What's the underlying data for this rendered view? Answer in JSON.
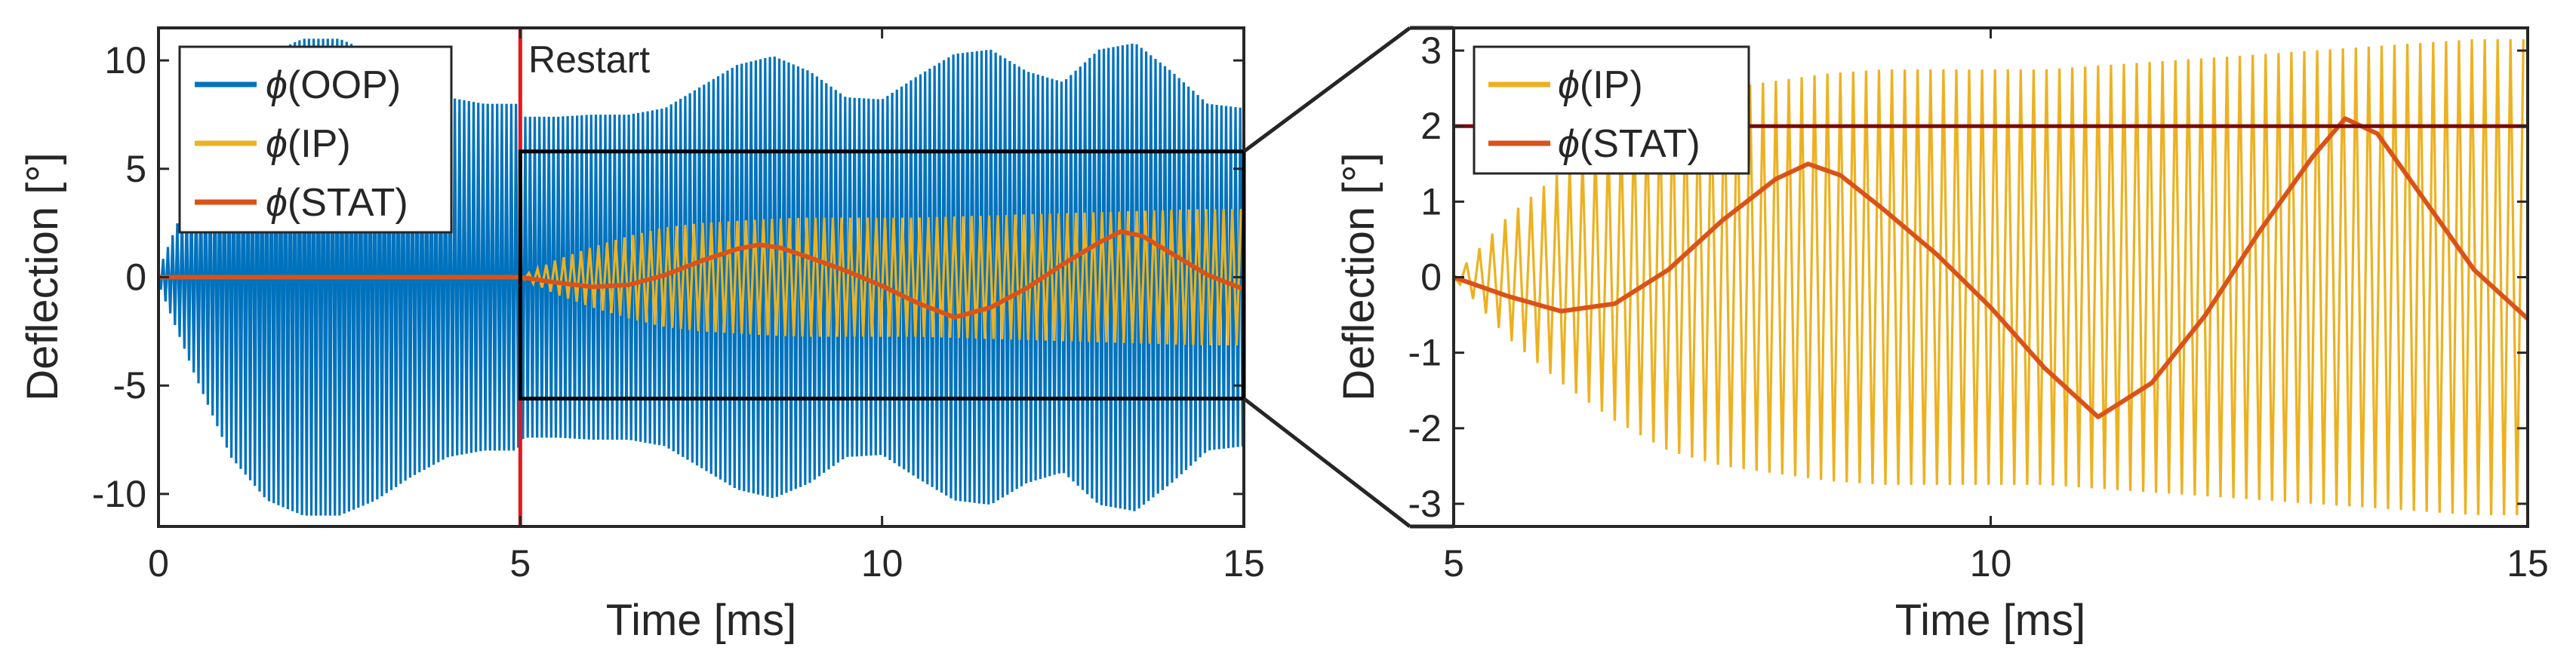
{
  "colors": {
    "oop": "#0072BD",
    "ip": "#EDB120",
    "stat": "#D95319",
    "restart": "#E8141B",
    "stat_ref": "#7A0A0A",
    "axis": "#262626"
  },
  "chart_data": [
    {
      "type": "line",
      "title": "",
      "xlabel": "Time [ms]",
      "ylabel": "Deflection [°]",
      "xlim": [
        0,
        15
      ],
      "ylim": [
        -11.5,
        11.5
      ],
      "xticks": [
        0,
        5,
        10,
        15
      ],
      "xtick_labels": [
        "0",
        "5",
        "10",
        "15"
      ],
      "yticks": [
        10,
        5,
        0,
        -5,
        -10
      ],
      "ytick_labels": [
        "10",
        "5",
        "0",
        "-5",
        "-10"
      ],
      "legend": {
        "placement": "top-left",
        "entries": [
          "ϕ(OOP)",
          "ϕ(IP)",
          "ϕ(STAT)"
        ],
        "symbol": "ϕ",
        "suffixes": [
          "(OOP)",
          "(IP)",
          "(STAT)"
        ]
      },
      "annotation": {
        "text": "Restart",
        "x": 5
      },
      "zoom_box": {
        "x": [
          5,
          15
        ],
        "y": [
          -5.6,
          5.8
        ]
      },
      "series": [
        {
          "name": "ϕ(OOP)",
          "style": "oscillation-envelope",
          "envelope": {
            "t": [
              0,
              0.5,
              1,
              1.5,
              2,
              2.5,
              3,
              3.5,
              4,
              4.5,
              4.95,
              5.05,
              5.5,
              6,
              6.5,
              7,
              7.5,
              8,
              8.5,
              9,
              9.5,
              10,
              10.5,
              11,
              11.5,
              12,
              12.5,
              13,
              13.5,
              14,
              14.5,
              15
            ],
            "amplitude": [
              0.3,
              4.5,
              8.3,
              10.3,
              11.0,
              11.0,
              10.3,
              9.2,
              8.3,
              8.0,
              8.0,
              7.4,
              7.4,
              7.5,
              7.5,
              7.8,
              8.8,
              9.8,
              10.2,
              9.5,
              8.3,
              8.2,
              9.3,
              10.3,
              10.5,
              9.5,
              9.0,
              10.5,
              10.8,
              9.5,
              8.0,
              7.8
            ]
          },
          "period_ms": 0.065
        },
        {
          "name": "ϕ(IP)",
          "style": "oscillation-envelope",
          "envelope": {
            "t": [
              5,
              5.5,
              6,
              6.5,
              7,
              7.5,
              8,
              8.5,
              9,
              9.5,
              10,
              10.5,
              11,
              11.5,
              12,
              12.5,
              13,
              13.5,
              14,
              14.5,
              15
            ],
            "amplitude": [
              0.0,
              0.8,
              1.4,
              1.9,
              2.3,
              2.5,
              2.6,
              2.7,
              2.75,
              2.75,
              2.75,
              2.75,
              2.8,
              2.85,
              2.9,
              2.95,
              3.0,
              3.05,
              3.1,
              3.15,
              3.15
            ]
          },
          "period_ms": 0.12
        },
        {
          "name": "ϕ(STAT)",
          "style": "line",
          "x": [
            0,
            5,
            5.5,
            6,
            6.5,
            7,
            7.5,
            8,
            8.3,
            8.6,
            9,
            9.5,
            10,
            10.5,
            11,
            11.5,
            12,
            12.5,
            13,
            13.3,
            13.6,
            14,
            14.5,
            15
          ],
          "y": [
            0,
            0,
            -0.25,
            -0.45,
            -0.35,
            0.1,
            0.75,
            1.3,
            1.5,
            1.35,
            0.9,
            0.3,
            -0.4,
            -1.2,
            -1.85,
            -1.4,
            -0.5,
            0.6,
            1.6,
            2.1,
            1.9,
            1.1,
            0.1,
            -0.55
          ]
        }
      ]
    },
    {
      "type": "line",
      "title": "",
      "xlabel": "Time [ms]",
      "ylabel": "Deflection [°]",
      "xlim": [
        5,
        15
      ],
      "ylim": [
        -3.3,
        3.3
      ],
      "xticks": [
        5,
        10,
        15
      ],
      "xtick_labels": [
        "5",
        "10",
        "15"
      ],
      "yticks": [
        3,
        2,
        1,
        0,
        -1,
        -2,
        -3
      ],
      "ytick_labels": [
        "3",
        "2",
        "1",
        "0",
        "-1",
        "-2",
        "-3"
      ],
      "legend": {
        "placement": "top-left",
        "entries": [
          "ϕ(IP)",
          "ϕ(STAT)"
        ],
        "symbol": "ϕ",
        "suffixes": [
          "(IP)",
          "(STAT)"
        ]
      },
      "reference_line": {
        "y": 2
      },
      "series": [
        {
          "name": "ϕ(IP)",
          "style": "oscillation-envelope",
          "envelope": {
            "t": [
              5,
              5.5,
              6,
              6.5,
              7,
              7.5,
              8,
              8.5,
              9,
              9.5,
              10,
              10.5,
              11,
              11.5,
              12,
              12.5,
              13,
              13.5,
              14,
              14.5,
              15
            ],
            "amplitude": [
              0.0,
              0.8,
              1.4,
              1.9,
              2.3,
              2.5,
              2.6,
              2.7,
              2.75,
              2.75,
              2.75,
              2.75,
              2.8,
              2.85,
              2.9,
              2.95,
              3.0,
              3.05,
              3.1,
              3.15,
              3.15
            ]
          },
          "period_ms": 0.12
        },
        {
          "name": "ϕ(STAT)",
          "style": "line",
          "x": [
            5,
            5.5,
            6,
            6.5,
            7,
            7.5,
            8,
            8.3,
            8.6,
            9,
            9.5,
            10,
            10.5,
            11,
            11.5,
            12,
            12.5,
            13,
            13.3,
            13.6,
            14,
            14.5,
            15
          ],
          "y": [
            0,
            -0.25,
            -0.45,
            -0.35,
            0.1,
            0.75,
            1.3,
            1.5,
            1.35,
            0.9,
            0.3,
            -0.4,
            -1.2,
            -1.85,
            -1.4,
            -0.5,
            0.6,
            1.6,
            2.1,
            1.9,
            1.1,
            0.1,
            -0.55
          ]
        }
      ]
    }
  ]
}
